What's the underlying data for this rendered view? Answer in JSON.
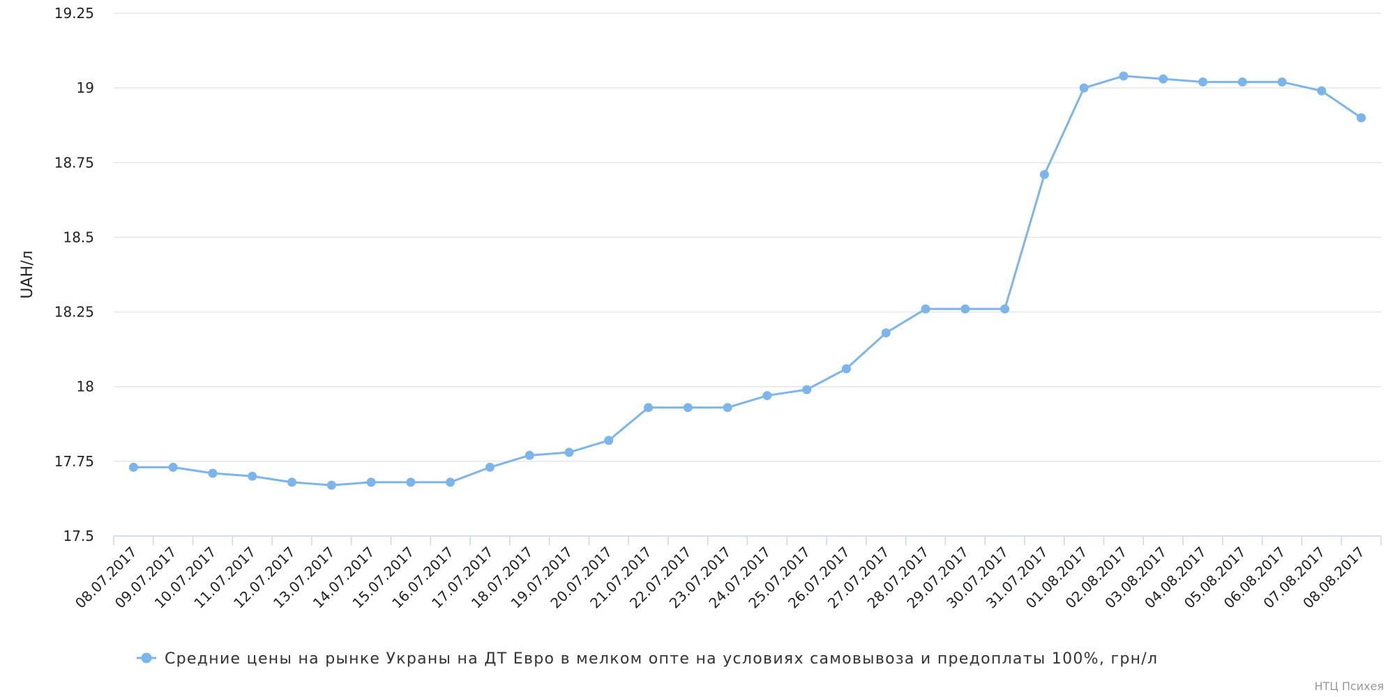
{
  "chart_data": {
    "type": "line",
    "y_label": "UAH/л",
    "categories": [
      "08.07.2017",
      "09.07.2017",
      "10.07.2017",
      "11.07.2017",
      "12.07.2017",
      "13.07.2017",
      "14.07.2017",
      "15.07.2017",
      "16.07.2017",
      "17.07.2017",
      "18.07.2017",
      "19.07.2017",
      "20.07.2017",
      "21.07.2017",
      "22.07.2017",
      "23.07.2017",
      "24.07.2017",
      "25.07.2017",
      "26.07.2017",
      "27.07.2017",
      "28.07.2017",
      "29.07.2017",
      "30.07.2017",
      "31.07.2017",
      "01.08.2017",
      "02.08.2017",
      "03.08.2017",
      "04.08.2017",
      "05.08.2017",
      "06.08.2017",
      "07.08.2017",
      "08.08.2017"
    ],
    "series": [
      {
        "name": "Средние цены на рынке Украны на ДТ Евро в мелком опте на условиях самовывоза и предоплаты 100%, грн/л",
        "color": "#7cb5ec",
        "values": [
          17.73,
          17.73,
          17.71,
          17.7,
          17.68,
          17.67,
          17.68,
          17.68,
          17.68,
          17.73,
          17.77,
          17.78,
          17.82,
          17.93,
          17.93,
          17.93,
          17.97,
          17.99,
          18.06,
          18.18,
          18.26,
          18.26,
          18.26,
          18.71,
          19.0,
          19.04,
          19.03,
          19.02,
          19.02,
          19.02,
          18.99,
          18.9
        ]
      }
    ],
    "ylim": [
      17.5,
      19.25
    ],
    "yticks": [
      17.5,
      17.75,
      18,
      18.25,
      18.5,
      18.75,
      19,
      19.25
    ],
    "grid": true,
    "legend": "bottom",
    "credits": "НТЦ Психея"
  }
}
